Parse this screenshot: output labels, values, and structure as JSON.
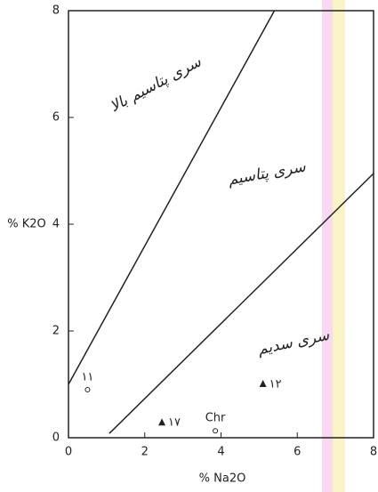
{
  "chart_data": {
    "type": "scatter",
    "x_label": "% Na2O",
    "y_label": "% K2O",
    "xlim": [
      0,
      8
    ],
    "ylim": [
      0,
      8
    ],
    "xticks": [
      0,
      2,
      4,
      6,
      8
    ],
    "yticks": [
      0,
      2,
      4,
      6,
      8
    ],
    "line_color": "#222222",
    "lines": [
      {
        "x": [
          0,
          5.4
        ],
        "y": [
          1.0,
          8
        ]
      },
      {
        "x": [
          1.07,
          8
        ],
        "y": [
          0.08,
          4.95
        ]
      }
    ],
    "annotations": [
      "سری پتاسیم بالا",
      "سری پتاسیم",
      "سری سدیم"
    ],
    "points": [
      {
        "label": "۱۱",
        "marker": "circle",
        "x": 0.5,
        "y": 0.9
      },
      {
        "label": "۱۷",
        "marker": "triangle",
        "x": 2.45,
        "y": 0.28
      },
      {
        "label": "Chr",
        "marker": "circle",
        "x": 3.85,
        "y": 0.13
      },
      {
        "label": "۱۲",
        "marker": "triangle",
        "x": 5.1,
        "y": 1.0
      }
    ]
  }
}
